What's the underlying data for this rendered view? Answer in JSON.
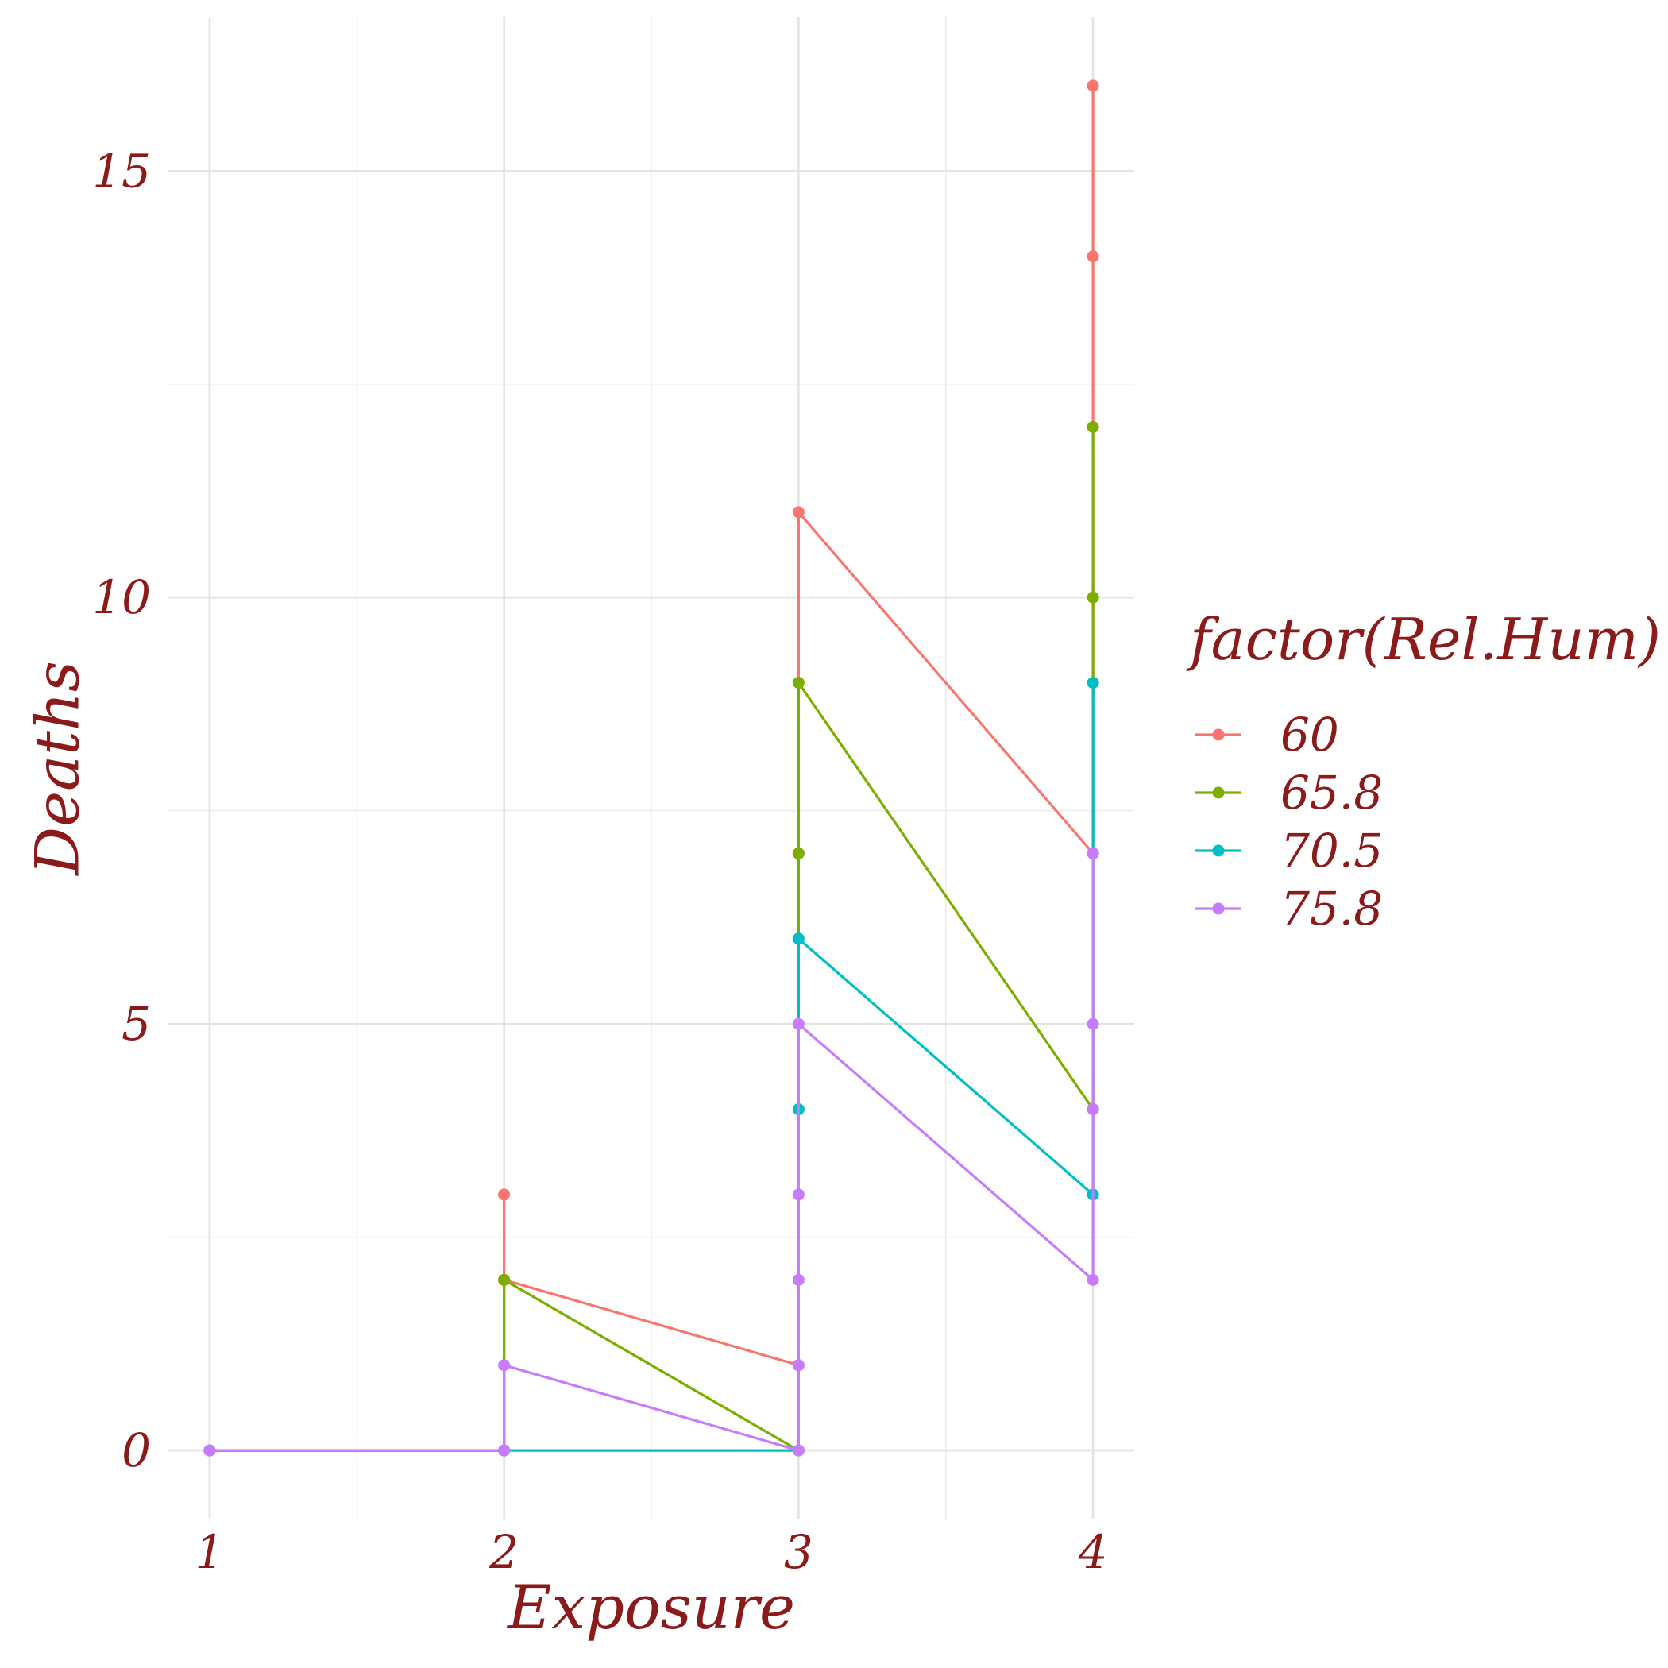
{
  "chart_data": {
    "type": "line",
    "xlabel": "Exposure",
    "ylabel": "Deaths",
    "xlim": [
      0.86,
      4.14
    ],
    "ylim": [
      -0.8,
      16.8
    ],
    "x_ticks": [
      1,
      2,
      3,
      4
    ],
    "y_ticks": [
      0,
      5,
      10,
      15
    ],
    "grid": true,
    "legend": {
      "title": "factor(Rel.Hum)",
      "placement": "right"
    },
    "series": [
      {
        "name": "60",
        "color": "#F8766D",
        "x": [
          1,
          2,
          2,
          2,
          3,
          3,
          3,
          4,
          4,
          4
        ],
        "y": [
          0,
          0,
          3,
          2,
          1,
          7,
          11,
          7,
          14,
          16
        ]
      },
      {
        "name": "65.8",
        "color": "#7CAE00",
        "x": [
          1,
          2,
          2,
          3,
          3,
          3,
          4,
          4,
          4
        ],
        "y": [
          0,
          0,
          2,
          0,
          7,
          9,
          4,
          10,
          12
        ]
      },
      {
        "name": "70.5",
        "color": "#00BFC4",
        "x": [
          1,
          2,
          3,
          3,
          3,
          4,
          4,
          4
        ],
        "y": [
          0,
          0,
          0,
          4,
          6,
          3,
          7,
          9
        ]
      },
      {
        "name": "75.8",
        "color": "#C77CFF",
        "x": [
          1,
          2,
          2,
          3,
          3,
          3,
          3,
          3,
          4,
          4,
          4,
          4
        ],
        "y": [
          0,
          0,
          1,
          0,
          1,
          2,
          3,
          5,
          2,
          4,
          5,
          7
        ]
      }
    ]
  }
}
